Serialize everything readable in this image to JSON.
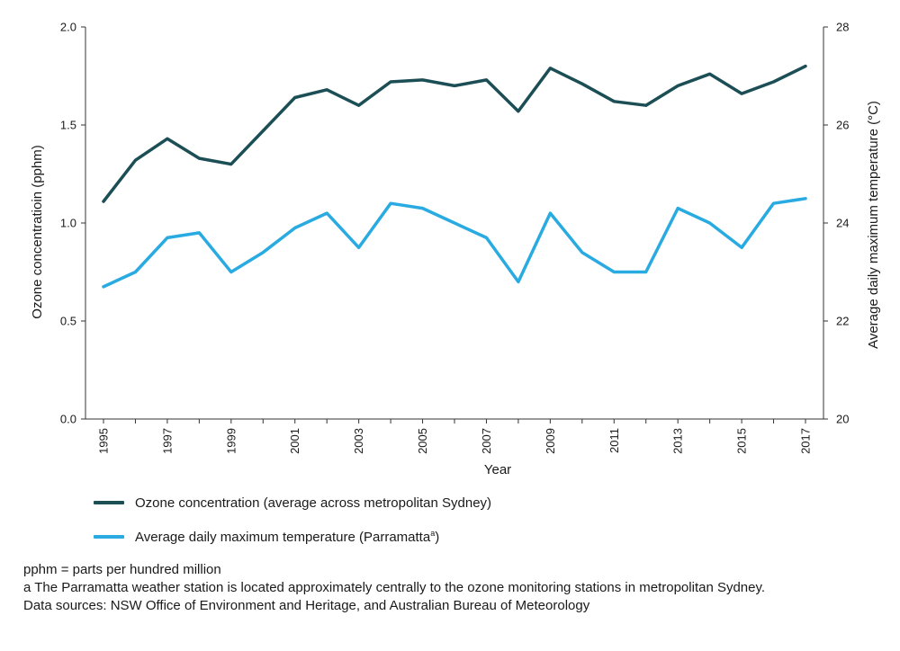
{
  "chart_data": {
    "type": "line",
    "x": [
      1995,
      1996,
      1997,
      1998,
      1999,
      2000,
      2001,
      2002,
      2003,
      2004,
      2005,
      2006,
      2007,
      2008,
      2009,
      2010,
      2011,
      2012,
      2013,
      2014,
      2015,
      2016,
      2017
    ],
    "x_tick_labels": [
      "1995",
      "1997",
      "1999",
      "2001",
      "2003",
      "2005",
      "2007",
      "2009",
      "2011",
      "2013",
      "2015",
      "2017"
    ],
    "xlabel": "Year",
    "y_left": {
      "label": "Ozone concentratioin (pphm)",
      "lim": [
        0,
        2
      ],
      "ticks": [
        "0.0",
        "0.5",
        "1.0",
        "1.5",
        "2.0"
      ]
    },
    "y_right": {
      "label": "Average daily maximum temperature (°C)",
      "lim": [
        20,
        28
      ],
      "ticks": [
        "20",
        "22",
        "24",
        "26",
        "28"
      ]
    },
    "series": [
      {
        "name": "Ozone concentration (average across metropolitan Sydney)",
        "axis": "left",
        "color": "#1b4f55",
        "values": [
          1.11,
          1.32,
          1.43,
          1.33,
          1.3,
          1.47,
          1.64,
          1.68,
          1.6,
          1.72,
          1.73,
          1.7,
          1.73,
          1.57,
          1.79,
          1.71,
          1.62,
          1.6,
          1.7,
          1.76,
          1.66,
          1.72,
          1.8
        ]
      },
      {
        "name": "Average daily maximum temperature (Parramatta",
        "name_sup": "a",
        "name_end": ")",
        "axis": "right",
        "color": "#29abe2",
        "values": [
          22.7,
          23.0,
          23.7,
          23.8,
          23.0,
          23.4,
          23.9,
          24.2,
          23.5,
          24.4,
          24.3,
          24.0,
          23.7,
          22.8,
          24.2,
          23.4,
          23.0,
          23.0,
          24.3,
          24.0,
          23.5,
          24.4,
          24.5
        ]
      }
    ],
    "grid": false,
    "legend_position": "bottom-left"
  },
  "notes": {
    "line1": "pphm = parts per hundred million",
    "line2": "a  The Parramatta weather station is located approximately centrally to the ozone monitoring stations in metropolitan Sydney.",
    "line3": "Data sources: NSW Office of Environment and Heritage, and Australian Bureau of Meteorology"
  }
}
